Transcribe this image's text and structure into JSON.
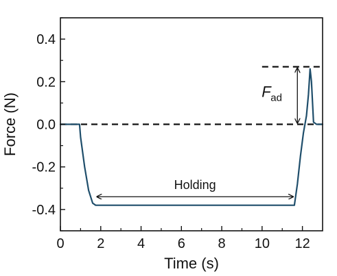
{
  "chart_data": {
    "type": "line",
    "xlabel": "Time (s)",
    "ylabel": "Force (N)",
    "xlim": [
      0,
      13
    ],
    "ylim": [
      -0.5,
      0.5
    ],
    "x_ticks": [
      0,
      2,
      4,
      6,
      8,
      10,
      12
    ],
    "y_ticks": [
      -0.4,
      -0.2,
      0.0,
      0.2,
      0.4
    ],
    "y_tick_labels": [
      "-0.4",
      "-0.2",
      "0.0",
      "0.2",
      "0.4"
    ],
    "grid": false,
    "line_color": "#1f4e6b",
    "series": [
      {
        "x": [
          0.0,
          0.5,
          0.95,
          1.0,
          1.2,
          1.4,
          1.6,
          1.75,
          2.0,
          4.0,
          6.0,
          8.0,
          10.0,
          11.6,
          11.75,
          11.9,
          12.05,
          12.2,
          12.3,
          12.38,
          12.45,
          12.55,
          12.7,
          13.0
        ],
        "y": [
          0.0,
          0.0,
          0.0,
          -0.06,
          -0.2,
          -0.31,
          -0.37,
          -0.38,
          -0.38,
          -0.38,
          -0.38,
          -0.38,
          -0.38,
          -0.38,
          -0.28,
          -0.15,
          -0.04,
          0.04,
          0.14,
          0.26,
          0.2,
          0.01,
          0.0,
          0.0
        ]
      }
    ],
    "reference_lines": [
      {
        "y": 0.0,
        "x_from": 0.0,
        "x_to": 13.0,
        "style": "dashed"
      },
      {
        "y": 0.27,
        "x_from": 10.0,
        "x_to": 13.0,
        "style": "dashed"
      }
    ],
    "annotations": {
      "holding": {
        "text": "Holding",
        "x_from": 1.75,
        "x_to": 11.6,
        "y": -0.34
      },
      "fad": {
        "main": "F",
        "sub": "ad",
        "x": 11.75,
        "y_from": 0.0,
        "y_to": 0.27
      }
    }
  }
}
